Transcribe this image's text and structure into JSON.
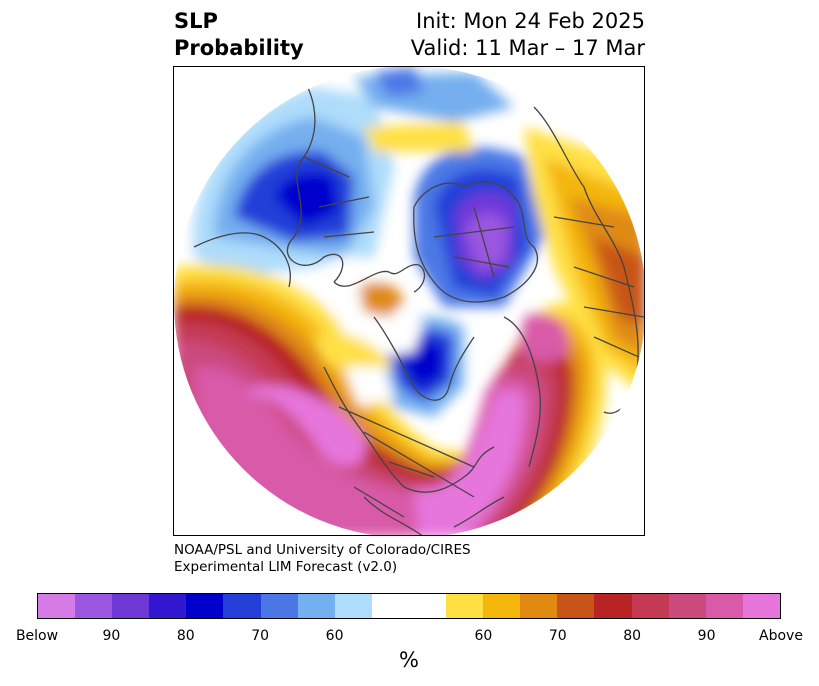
{
  "header": {
    "variable_line1": "SLP",
    "variable_line2": "Probability",
    "init_label": "Init: Mon 24 Feb 2025",
    "valid_label": "Valid: 11 Mar – 17 Mar"
  },
  "credit": {
    "line1": "NOAA/PSL and University of Colorado/CIRES",
    "line2": "Experimental LIM Forecast (v2.0)"
  },
  "colorbar": {
    "below_colors": [
      "#d67ae6",
      "#9a56e0",
      "#6f39d8",
      "#3318d2",
      "#0000cd",
      "#2440d8",
      "#4b78e6",
      "#74afef",
      "#aedcfb"
    ],
    "neutral_color": "#ffffff",
    "above_colors": [
      "#ffe044",
      "#f4b60a",
      "#e08a12",
      "#c85418",
      "#b82424",
      "#c43a52",
      "#cc4a7e",
      "#d85aa8",
      "#e676dc"
    ],
    "tick_labels": [
      "Below",
      "90",
      "80",
      "70",
      "60",
      "60",
      "70",
      "80",
      "90",
      "Above"
    ],
    "unit_label": "%"
  }
}
